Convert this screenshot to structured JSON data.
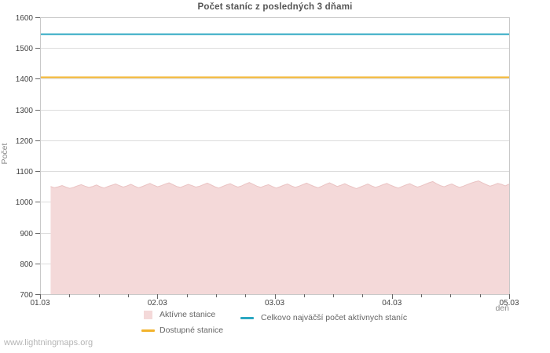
{
  "watermark": "www.lightningmaps.org",
  "chart_data": {
    "type": "area",
    "title": "Počet staníc z posledných 3 dňami",
    "xlabel": "deň",
    "ylabel": "Počet",
    "ylim": [
      700,
      1600
    ],
    "grid": true,
    "legend_position": "bottom",
    "y_ticks": [
      700,
      800,
      900,
      1000,
      1100,
      1200,
      1300,
      1400,
      1500,
      1600
    ],
    "x_ticks": [
      "01.03",
      "02.03",
      "03.03",
      "04.03",
      "05.03"
    ],
    "x_minor_ticks_per_day": 4,
    "colors": {
      "frame": "#c9c9c9",
      "grid": "#dcdcdc",
      "tick": "#666666",
      "tick_label": "#444444",
      "background": "#ffffff"
    },
    "series": [
      {
        "name": "Aktívne stanice",
        "type": "area",
        "color": "#f4d9d9",
        "edge_color": "#eac3c3",
        "x0_day": 0.09,
        "x1_day": 4.0,
        "values": [
          1050,
          1046,
          1049,
          1053,
          1048,
          1044,
          1047,
          1052,
          1056,
          1051,
          1047,
          1050,
          1055,
          1049,
          1045,
          1050,
          1054,
          1058,
          1053,
          1048,
          1052,
          1057,
          1051,
          1046,
          1050,
          1055,
          1060,
          1054,
          1049,
          1053,
          1058,
          1062,
          1056,
          1050,
          1047,
          1052,
          1057,
          1053,
          1048,
          1051,
          1056,
          1061,
          1055,
          1049,
          1045,
          1050,
          1055,
          1059,
          1053,
          1048,
          1052,
          1058,
          1063,
          1057,
          1051,
          1047,
          1052,
          1056,
          1050,
          1045,
          1049,
          1054,
          1058,
          1052,
          1047,
          1051,
          1056,
          1061,
          1055,
          1050,
          1046,
          1051,
          1057,
          1062,
          1056,
          1050,
          1054,
          1059,
          1053,
          1048,
          1043,
          1048,
          1053,
          1058,
          1052,
          1047,
          1051,
          1056,
          1060,
          1054,
          1049,
          1045,
          1050,
          1055,
          1059,
          1053,
          1048,
          1052,
          1057,
          1062,
          1066,
          1059,
          1053,
          1049,
          1054,
          1058,
          1052,
          1047,
          1051,
          1056,
          1061,
          1065,
          1068,
          1062,
          1056,
          1051,
          1055,
          1060,
          1057,
          1052,
          1058
        ]
      },
      {
        "name": "Celkovo najväčší počet aktívnych staníc",
        "type": "line",
        "color": "#2ca8c2",
        "value": 1545
      },
      {
        "name": "Dostupné stanice",
        "type": "line",
        "color": "#f2b32b",
        "value": 1405
      }
    ]
  }
}
